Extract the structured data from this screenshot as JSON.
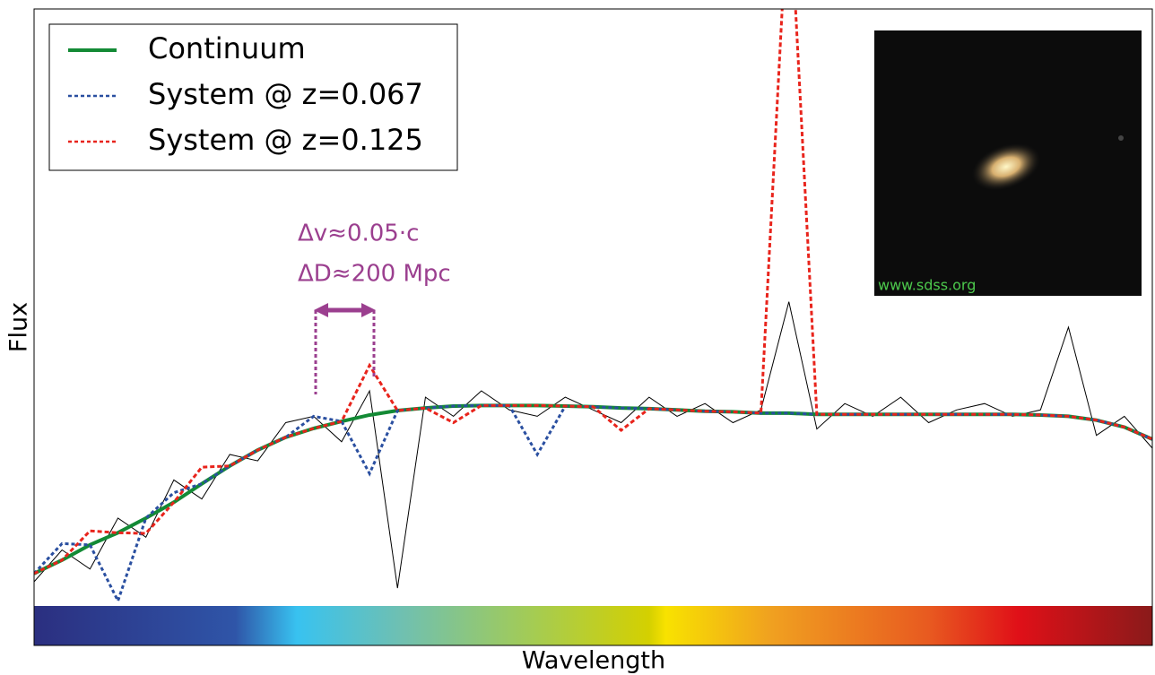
{
  "chart_data": {
    "type": "line",
    "xlabel": "Wavelength",
    "ylabel": "Flux",
    "xlim": [
      0,
      100
    ],
    "ylim": [
      0,
      100
    ],
    "x": [
      0,
      2.5,
      5,
      7.5,
      10,
      12.5,
      15,
      17.5,
      20,
      22.5,
      25,
      27.5,
      30,
      32.5,
      35,
      37.5,
      40,
      42.5,
      45,
      47.5,
      50,
      52.5,
      55,
      57.5,
      60,
      62.5,
      65,
      67.5,
      70,
      72.5,
      75,
      77.5,
      80,
      82.5,
      85,
      87.5,
      90,
      92.5,
      95,
      97.5,
      100
    ],
    "series": [
      {
        "color": "#000000",
        "values": [
          10,
          15,
          12,
          20,
          17,
          26,
          23,
          30,
          29,
          35,
          36,
          32,
          40,
          9,
          39,
          36,
          40,
          37,
          36,
          39,
          37,
          35,
          39,
          36,
          38,
          35,
          37,
          54,
          34,
          38,
          36,
          39,
          35,
          37,
          38,
          36,
          37,
          50,
          33,
          36,
          31
        ]
      },
      {
        "name": "Continuum",
        "color": "#138a35",
        "values": [
          11.3,
          13.4,
          15.8,
          17.7,
          20.0,
          22.5,
          25.4,
          28.2,
          30.7,
          32.7,
          34.1,
          35.2,
          36.2,
          36.9,
          37.3,
          37.6,
          37.7,
          37.7,
          37.7,
          37.6,
          37.5,
          37.3,
          37.2,
          37.0,
          36.8,
          36.7,
          36.5,
          36.5,
          36.3,
          36.3,
          36.3,
          36.3,
          36.3,
          36.3,
          36.3,
          36.3,
          36.2,
          36.0,
          35.4,
          34.3,
          32.4
        ]
      },
      {
        "name": "System @ z=0.067",
        "color": "#2a4fa0",
        "values": [
          11.3,
          16,
          15.8,
          7,
          20.0,
          24,
          25.4,
          28.2,
          30.7,
          32.7,
          36,
          35.2,
          27,
          36.9,
          37.3,
          37.6,
          37.7,
          37.7,
          30,
          37.6,
          37.5,
          37.3,
          37.2,
          37.0,
          36.8,
          36.7,
          36.5,
          36.5,
          36.3,
          36.3,
          36.3,
          36.3,
          36.3,
          36.3,
          36.3,
          36.3,
          36.2,
          36.0,
          35.4,
          34.3,
          32.4
        ]
      },
      {
        "name": "System @ z=0.125",
        "color": "#e8241c",
        "values": [
          11.3,
          13.4,
          18,
          17.7,
          17.6,
          22.5,
          28,
          28.2,
          30.7,
          32.7,
          34.1,
          35.2,
          44,
          36.9,
          37.3,
          35,
          37.7,
          37.7,
          37.7,
          37.6,
          37.5,
          33.8,
          37.2,
          37.0,
          36.8,
          36.7,
          36.5,
          120,
          36.3,
          36.3,
          36.3,
          36.3,
          36.3,
          36.3,
          36.3,
          36.3,
          36.2,
          36.0,
          35.4,
          34.3,
          32.4
        ]
      }
    ],
    "annotations": [
      "Δv≈0.05·c",
      "ΔD≈200 Mpc"
    ],
    "image_credit": "www.sdss.org"
  }
}
